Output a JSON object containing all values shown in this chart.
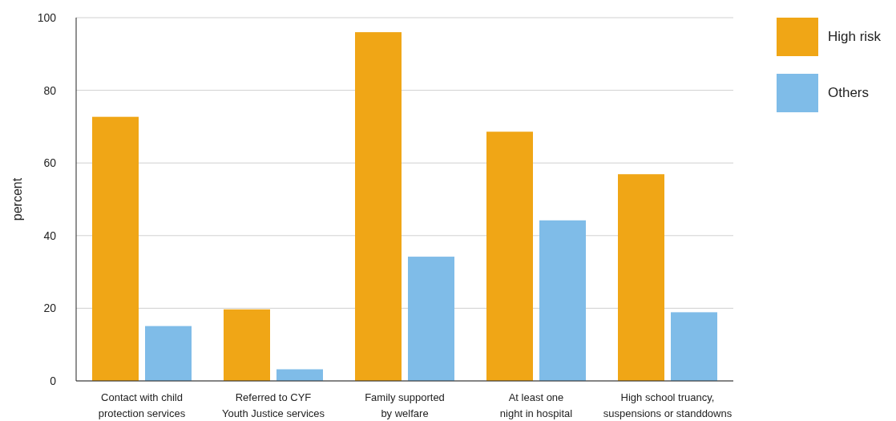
{
  "chart_data": {
    "type": "bar",
    "ylabel": "percent",
    "categories": [
      "Contact with child protection services",
      "Referred to CYF Youth Justice services",
      "Family supported by welfare",
      "At least one night in hospital",
      "High school truancy, suspensions or standdowns"
    ],
    "series": [
      {
        "name": "High risk",
        "color": "#f0a616",
        "values": [
          72.7,
          19.7,
          96,
          68.6,
          56.9
        ]
      },
      {
        "name": "Others",
        "color": "#7fbce8",
        "values": [
          15.1,
          3.2,
          34.2,
          44.2,
          18.9
        ]
      }
    ],
    "ylim": [
      0,
      100
    ],
    "yticks": [
      0,
      20,
      40,
      60,
      80,
      100
    ],
    "grid": "y",
    "legend": "top right"
  }
}
